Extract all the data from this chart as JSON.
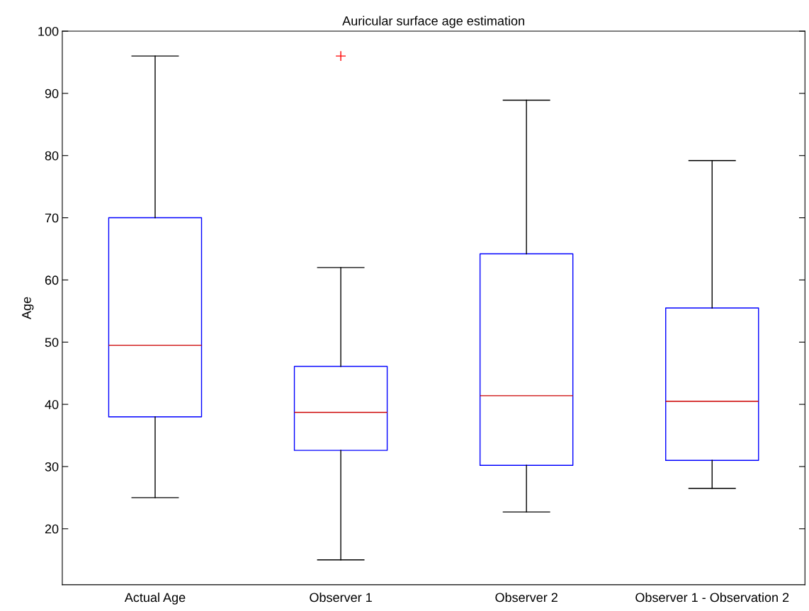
{
  "chart_data": {
    "type": "box",
    "title": "Auricular surface age estimation",
    "ylabel": "Age",
    "categories": [
      "Actual Age",
      "Observer 1",
      "Observer 2",
      "Observer 1 - Observation 2"
    ],
    "series": [
      {
        "color": "#0000ff",
        "boxes": [
          {
            "low": 25,
            "q1": 38,
            "median": 49.5,
            "q3": 70,
            "high": 96
          },
          {
            "low": 15,
            "q1": 32.6,
            "median": 38.7,
            "q3": 46.1,
            "high": 62,
            "outliers": [
              96
            ]
          },
          {
            "low": 22.7,
            "q1": 30.2,
            "median": 41.4,
            "q3": 64.2,
            "high": 88.9
          },
          {
            "low": 26.5,
            "q1": 31,
            "median": 40.5,
            "q3": 55.5,
            "high": 79.2
          }
        ]
      }
    ],
    "ylim": [
      11,
      100
    ],
    "yticks": [
      20,
      30,
      40,
      50,
      60,
      70,
      80,
      90,
      100
    ],
    "grid": false,
    "legend": false
  }
}
